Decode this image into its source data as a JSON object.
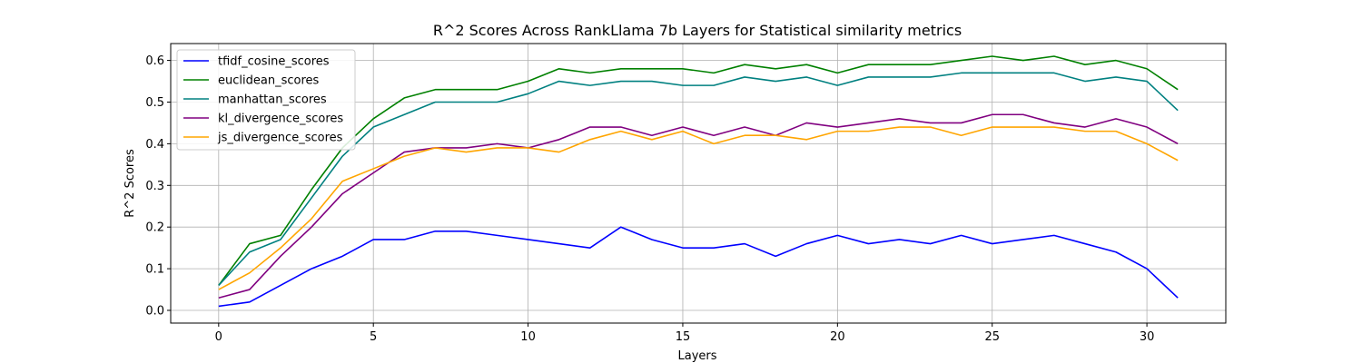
{
  "chart_data": {
    "type": "line",
    "title": "R^2 Scores Across RankLlama 7b Layers for Statistical similarity metrics",
    "xlabel": "Layers",
    "ylabel": "R^2 Scores",
    "xlim": [
      -1.55,
      32.55
    ],
    "ylim": [
      -0.0305,
      0.6405
    ],
    "xticks": [
      0,
      5,
      10,
      15,
      20,
      25,
      30
    ],
    "yticks": [
      0.0,
      0.1,
      0.2,
      0.3,
      0.4,
      0.5,
      0.6
    ],
    "xtick_labels": [
      "0",
      "5",
      "10",
      "15",
      "20",
      "25",
      "30"
    ],
    "ytick_labels": [
      "0.0",
      "0.1",
      "0.2",
      "0.3",
      "0.4",
      "0.5",
      "0.6"
    ],
    "grid": true,
    "legend_position": "top-left",
    "x": [
      0,
      1,
      2,
      3,
      4,
      5,
      6,
      7,
      8,
      9,
      10,
      11,
      12,
      13,
      14,
      15,
      16,
      17,
      18,
      19,
      20,
      21,
      22,
      23,
      24,
      25,
      26,
      27,
      28,
      29,
      30,
      31
    ],
    "series": [
      {
        "name": "tfidf_cosine_scores",
        "color": "#0000ff",
        "values": [
          0.01,
          0.02,
          0.06,
          0.1,
          0.13,
          0.17,
          0.17,
          0.19,
          0.19,
          0.18,
          0.17,
          0.16,
          0.15,
          0.2,
          0.17,
          0.15,
          0.15,
          0.16,
          0.13,
          0.16,
          0.18,
          0.16,
          0.17,
          0.16,
          0.18,
          0.16,
          0.17,
          0.18,
          0.16,
          0.14,
          0.1,
          0.03
        ]
      },
      {
        "name": "euclidean_scores",
        "color": "#008000",
        "values": [
          0.06,
          0.16,
          0.18,
          0.29,
          0.39,
          0.46,
          0.51,
          0.53,
          0.53,
          0.53,
          0.55,
          0.58,
          0.57,
          0.58,
          0.58,
          0.58,
          0.57,
          0.59,
          0.58,
          0.59,
          0.57,
          0.59,
          0.59,
          0.59,
          0.6,
          0.61,
          0.6,
          0.61,
          0.59,
          0.6,
          0.58,
          0.53
        ]
      },
      {
        "name": "manhattan_scores",
        "color": "#008080",
        "values": [
          0.06,
          0.14,
          0.17,
          0.27,
          0.37,
          0.44,
          0.47,
          0.5,
          0.5,
          0.5,
          0.52,
          0.55,
          0.54,
          0.55,
          0.55,
          0.54,
          0.54,
          0.56,
          0.55,
          0.56,
          0.54,
          0.56,
          0.56,
          0.56,
          0.57,
          0.57,
          0.57,
          0.57,
          0.55,
          0.56,
          0.55,
          0.48
        ]
      },
      {
        "name": "kl_divergence_scores",
        "color": "#800080",
        "values": [
          0.03,
          0.05,
          0.13,
          0.2,
          0.28,
          0.33,
          0.38,
          0.39,
          0.39,
          0.4,
          0.39,
          0.41,
          0.44,
          0.44,
          0.42,
          0.44,
          0.42,
          0.44,
          0.42,
          0.45,
          0.44,
          0.45,
          0.46,
          0.45,
          0.45,
          0.47,
          0.47,
          0.45,
          0.44,
          0.46,
          0.44,
          0.4
        ]
      },
      {
        "name": "js_divergence_scores",
        "color": "#ffa500",
        "values": [
          0.05,
          0.09,
          0.15,
          0.22,
          0.31,
          0.34,
          0.37,
          0.39,
          0.38,
          0.39,
          0.39,
          0.38,
          0.41,
          0.43,
          0.41,
          0.43,
          0.4,
          0.42,
          0.42,
          0.41,
          0.43,
          0.43,
          0.44,
          0.44,
          0.42,
          0.44,
          0.44,
          0.44,
          0.43,
          0.43,
          0.4,
          0.36
        ]
      }
    ]
  }
}
